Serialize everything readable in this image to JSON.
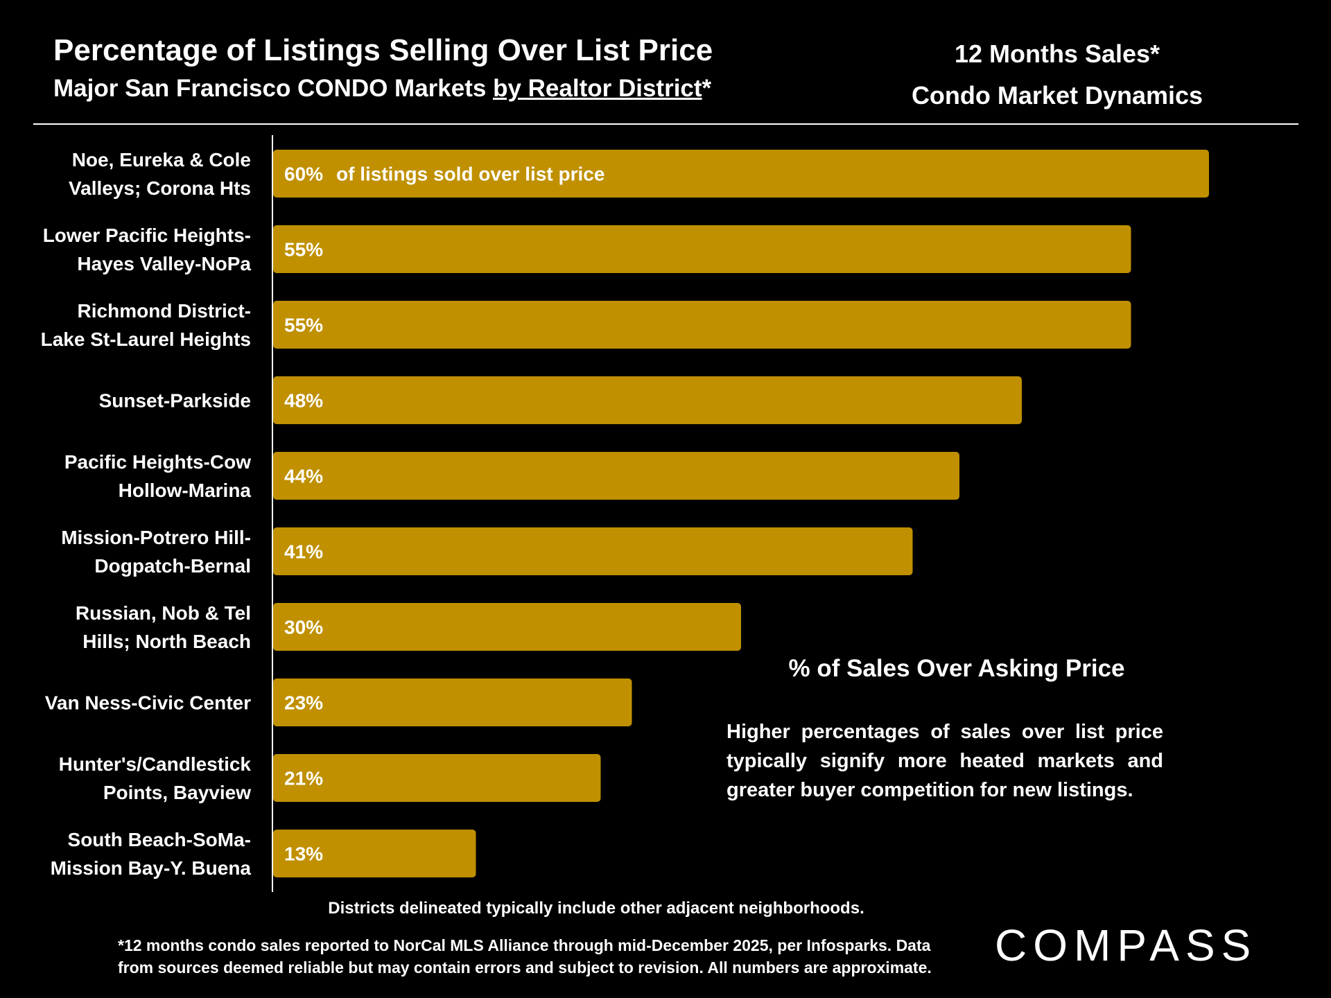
{
  "header": {
    "title": "Percentage of Listings Selling Over List Price",
    "subtitle_prefix": "Major San Francisco CONDO Markets ",
    "subtitle_link": "by Realtor District",
    "subtitle_suffix": "*",
    "right_line1": "12 Months Sales*",
    "right_line2": "Condo Market Dynamics"
  },
  "chart_data": {
    "type": "bar",
    "orientation": "horizontal",
    "categories": [
      [
        "Noe, Eureka & Cole",
        "Valleys; Corona Hts"
      ],
      [
        "Lower Pacific Heights-",
        "Hayes Valley-NoPa"
      ],
      [
        "Richmond District-",
        "Lake St-Laurel Heights"
      ],
      [
        "Sunset-Parkside"
      ],
      [
        "Pacific Heights-Cow",
        "Hollow-Marina"
      ],
      [
        "Mission-Potrero Hill-",
        "Dogpatch-Bernal"
      ],
      [
        "Russian, Nob & Tel",
        "Hills; North Beach"
      ],
      [
        "Van Ness-Civic Center"
      ],
      [
        "Hunter's/Candlestick",
        "Points, Bayview"
      ],
      [
        "South Beach-SoMa-",
        "Mission Bay-Y. Buena"
      ]
    ],
    "values": [
      60,
      55,
      55,
      48,
      44,
      41,
      30,
      23,
      21,
      13
    ],
    "value_labels": [
      "60%",
      "55%",
      "55%",
      "48%",
      "44%",
      "41%",
      "30%",
      "23%",
      "21%",
      "13%"
    ],
    "first_bar_note": "of listings sold over list price",
    "bar_color": "#C09000",
    "grid": false
  },
  "annotation": {
    "title": "% of Sales Over Asking Price",
    "body": "Higher percentages of sales over list price typically signify more heated markets and greater buyer competition for new listings."
  },
  "footnotes": {
    "line1": "Districts delineated typically include other adjacent neighborhoods.",
    "line2": "*12 months condo sales reported to NorCal MLS Alliance through mid-December 2025, per Infosparks. Data from sources deemed reliable but may contain errors and subject to revision. All numbers are approximate."
  },
  "logo": {
    "text": "COMPASS"
  }
}
